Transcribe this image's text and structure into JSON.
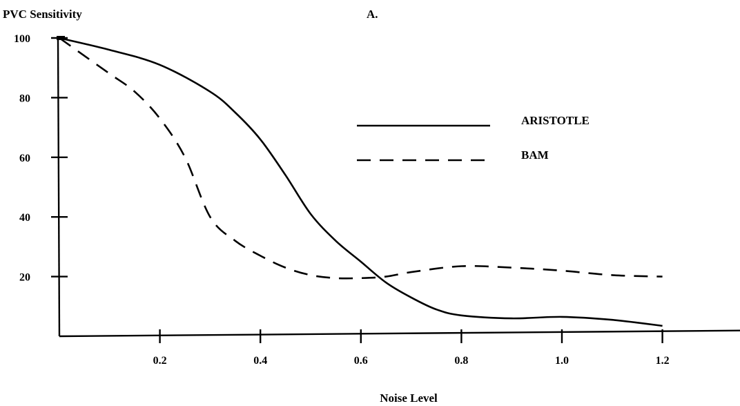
{
  "chart_data": {
    "type": "line",
    "panel_label": "A.",
    "title": "",
    "ylabel": "PVC Sensitivity",
    "xlabel": "Noise Level",
    "xlim": [
      0,
      1.4
    ],
    "ylim": [
      0,
      100
    ],
    "x_ticks": [
      {
        "value": 0.2,
        "label": "0.2"
      },
      {
        "value": 0.4,
        "label": "0.4"
      },
      {
        "value": 0.6,
        "label": "0.6"
      },
      {
        "value": 0.8,
        "label": "0.8"
      },
      {
        "value": 1.0,
        "label": "1.0"
      },
      {
        "value": 1.2,
        "label": "1.2"
      }
    ],
    "y_ticks": [
      {
        "value": 20,
        "label": "20"
      },
      {
        "value": 40,
        "label": "40"
      },
      {
        "value": 60,
        "label": "60"
      },
      {
        "value": 80,
        "label": "80"
      },
      {
        "value": 100,
        "label": "100"
      }
    ],
    "grid": false,
    "legend_position": "right",
    "series": [
      {
        "name": "ARISTOTLE",
        "style": "solid",
        "x": [
          0.0,
          0.1,
          0.2,
          0.3,
          0.35,
          0.4,
          0.45,
          0.5,
          0.55,
          0.6,
          0.65,
          0.7,
          0.75,
          0.8,
          0.9,
          1.0,
          1.1,
          1.2
        ],
        "y": [
          100,
          96,
          91,
          82,
          75,
          66,
          54,
          41,
          32,
          25,
          18,
          13,
          9,
          7,
          6,
          6.5,
          5.5,
          3.5
        ]
      },
      {
        "name": "BAM",
        "style": "dashed",
        "x": [
          0.0,
          0.05,
          0.1,
          0.15,
          0.2,
          0.25,
          0.3,
          0.35,
          0.4,
          0.45,
          0.5,
          0.55,
          0.6,
          0.65,
          0.7,
          0.8,
          0.9,
          1.0,
          1.1,
          1.2
        ],
        "y": [
          100,
          94,
          88,
          82,
          73,
          60,
          40,
          32,
          27,
          23,
          20.5,
          19.5,
          19.5,
          20,
          21.5,
          23.5,
          23,
          22,
          20.5,
          20
        ]
      }
    ]
  }
}
